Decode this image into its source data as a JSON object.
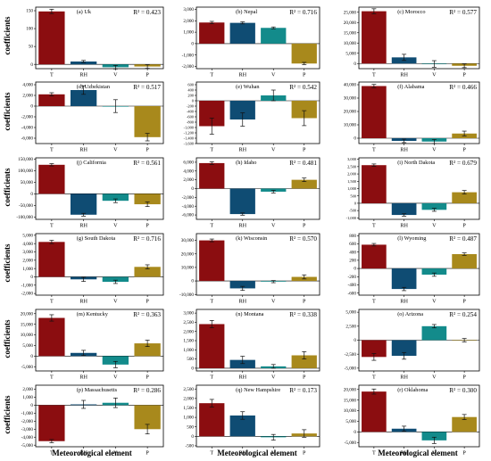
{
  "figure": {
    "y_axis_label": "coefficients",
    "x_axis_label": "Meteorological element"
  },
  "colors": {
    "T": "#8b0d10",
    "RH": "#0f4c73",
    "V": "#138b8b",
    "P": "#a8891c",
    "error_bar": "#111111"
  },
  "chart_data": [
    {
      "type": "bar",
      "title": "(a) Uk",
      "r2": "R² = 0.423",
      "categories": [
        "T",
        "RH",
        "V",
        "P"
      ],
      "values": [
        148,
        8,
        -8,
        -6
      ],
      "errors": [
        6,
        3,
        5,
        5
      ],
      "ylim": [
        -12,
        160
      ],
      "ticks": [
        0,
        50,
        100,
        150
      ],
      "tick_labels": [
        "0",
        "50",
        "100",
        "150"
      ]
    },
    {
      "type": "bar",
      "title": "(b) Nepal",
      "r2": "R² = 0.716",
      "categories": [
        "T",
        "RH",
        "V",
        "P"
      ],
      "values": [
        1850,
        1820,
        1380,
        -1750
      ],
      "errors": [
        100,
        90,
        80,
        100
      ],
      "ylim": [
        -2200,
        3200
      ],
      "ticks": [
        -2000,
        -1000,
        0,
        1000,
        2000,
        3000
      ],
      "tick_labels": [
        "-2,000",
        "-1,000",
        "0",
        "1,000",
        "2,000",
        "3,000"
      ]
    },
    {
      "type": "bar",
      "title": "(c) Morocco",
      "r2": "R² = 0.577",
      "categories": [
        "T",
        "RH",
        "V",
        "P"
      ],
      "values": [
        25500,
        3000,
        -200,
        -1100
      ],
      "errors": [
        1200,
        1500,
        1600,
        900
      ],
      "ylim": [
        -2500,
        27500
      ],
      "ticks": [
        0,
        5000,
        10000,
        15000,
        20000,
        25000
      ],
      "tick_labels": [
        "0",
        "5,000",
        "10,000",
        "15,000",
        "20,000",
        "25,000"
      ]
    },
    {
      "type": "bar",
      "title": "(d) Uzbekistan",
      "r2": "R² = 0.517",
      "categories": [
        "T",
        "RH",
        "V",
        "P"
      ],
      "values": [
        2200,
        3000,
        0,
        -5800
      ],
      "errors": [
        300,
        800,
        1200,
        700
      ],
      "ylim": [
        -7000,
        4500
      ],
      "ticks": [
        -6000,
        -4000,
        -2000,
        0,
        2000,
        4000
      ],
      "tick_labels": [
        "-6,000",
        "-4,000",
        "-2,000",
        "0",
        "2,000",
        "4,000"
      ]
    },
    {
      "type": "bar",
      "title": "(e) Wuhan",
      "r2": "R² = 0.542",
      "categories": [
        "T",
        "RH",
        "V",
        "P"
      ],
      "values": [
        -950,
        -700,
        200,
        -650
      ],
      "errors": [
        300,
        250,
        200,
        280
      ],
      "ylim": [
        -1600,
        700
      ],
      "ticks": [
        -1600,
        -1400,
        -1200,
        -1000,
        -800,
        -600,
        -400,
        -200,
        0,
        200,
        400,
        600
      ],
      "tick_labels": [
        "-1,600",
        "-1,400",
        "-1,200",
        "-1,000",
        "-800",
        "-600",
        "-400",
        "-200",
        "0",
        "200",
        "400",
        "600"
      ]
    },
    {
      "type": "bar",
      "title": "(f) Alabama",
      "r2": "R² = 0.466",
      "categories": [
        "T",
        "RH",
        "V",
        "P"
      ],
      "values": [
        39000,
        -2000,
        -2500,
        3500
      ],
      "errors": [
        1200,
        1300,
        1500,
        1800
      ],
      "ylim": [
        -4000,
        42000
      ],
      "ticks": [
        0,
        10000,
        20000,
        30000,
        40000
      ],
      "tick_labels": [
        "0",
        "10,000",
        "20,000",
        "30,000",
        "40,000"
      ]
    },
    {
      "type": "bar",
      "title": "(j) California",
      "r2": "R² = 0.561",
      "categories": [
        "T",
        "RH",
        "V",
        "P"
      ],
      "values": [
        125000,
        -90000,
        -30000,
        -45000
      ],
      "errors": [
        5000,
        6000,
        8000,
        10000
      ],
      "ylim": [
        -110000,
        155000
      ],
      "ticks": [
        -100000,
        -50000,
        0,
        50000,
        100000,
        150000
      ],
      "tick_labels": [
        "-100,000",
        "-50,000",
        "0",
        "50,000",
        "100,000",
        "150,000"
      ]
    },
    {
      "type": "bar",
      "title": "(h) Idaho",
      "r2": "R² = 0.481",
      "categories": [
        "T",
        "RH",
        "V",
        "P"
      ],
      "values": [
        5800,
        -5800,
        -700,
        2000
      ],
      "errors": [
        300,
        250,
        300,
        400
      ],
      "ylim": [
        -7000,
        7000
      ],
      "ticks": [
        -6000,
        -4000,
        -2000,
        0,
        2000,
        4000,
        6000
      ],
      "tick_labels": [
        "-6,000",
        "-4,000",
        "-2,000",
        "0",
        "2,000",
        "4,000",
        "6,000"
      ]
    },
    {
      "type": "bar",
      "title": "(i) North Dakota",
      "r2": "R² = 0.679",
      "categories": [
        "T",
        "RH",
        "V",
        "P"
      ],
      "values": [
        2600,
        -800,
        -450,
        750
      ],
      "errors": [
        80,
        80,
        100,
        120
      ],
      "ylim": [
        -1100,
        3100
      ],
      "ticks": [
        -1000,
        -500,
        0,
        500,
        1000,
        1500,
        2000,
        2500,
        3000
      ],
      "tick_labels": [
        "-1,000",
        "-500",
        "0",
        "500",
        "1,000",
        "1,500",
        "2,000",
        "2,500",
        "3,000"
      ]
    },
    {
      "type": "bar",
      "title": "(g) South Dakota",
      "r2": "R² = 0.716",
      "categories": [
        "T",
        "RH",
        "V",
        "P"
      ],
      "values": [
        4200,
        -300,
        -600,
        1200
      ],
      "errors": [
        200,
        250,
        200,
        250
      ],
      "ylim": [
        -2200,
        5200
      ],
      "ticks": [
        -2000,
        -1000,
        0,
        1000,
        2000,
        3000,
        4000,
        5000
      ],
      "tick_labels": [
        "-2,000",
        "-1,000",
        "0",
        "1,000",
        "2,000",
        "3,000",
        "4,000",
        "5,000"
      ]
    },
    {
      "type": "bar",
      "title": "(k) Wisconsin",
      "r2": "R² = 0.570",
      "categories": [
        "T",
        "RH",
        "V",
        "P"
      ],
      "values": [
        30000,
        -5500,
        -500,
        3000
      ],
      "errors": [
        1000,
        1500,
        800,
        1500
      ],
      "ylim": [
        -10500,
        35000
      ],
      "ticks": [
        -10000,
        0,
        10000,
        20000,
        30000
      ],
      "tick_labels": [
        "-10,000",
        "0",
        "10,000",
        "20,000",
        "30,000"
      ]
    },
    {
      "type": "bar",
      "title": "(l) Wyoming",
      "r2": "R² = 0.487",
      "categories": [
        "T",
        "RH",
        "V",
        "P"
      ],
      "values": [
        580,
        -500,
        -150,
        350
      ],
      "errors": [
        30,
        40,
        40,
        30
      ],
      "ylim": [
        -650,
        850
      ],
      "ticks": [
        -600,
        -400,
        -200,
        0,
        200,
        400,
        600,
        800
      ],
      "tick_labels": [
        "-600",
        "-400",
        "-200",
        "0",
        "200",
        "400",
        "600",
        "800"
      ]
    },
    {
      "type": "bar",
      "title": "(m) Kentucky",
      "r2": "R² = 0.363",
      "categories": [
        "T",
        "RH",
        "V",
        "P"
      ],
      "values": [
        18000,
        1500,
        -4000,
        6000
      ],
      "errors": [
        1500,
        1200,
        1500,
        1500
      ],
      "ylim": [
        -7000,
        22000
      ],
      "ticks": [
        -5000,
        0,
        5000,
        10000,
        15000,
        20000
      ],
      "tick_labels": [
        "-5,000",
        "0",
        "5,000",
        "10,000",
        "15,000",
        "20,000"
      ]
    },
    {
      "type": "bar",
      "title": "(n) Montana",
      "r2": "R² = 0.338",
      "categories": [
        "T",
        "RH",
        "V",
        "P"
      ],
      "values": [
        2400,
        450,
        100,
        700
      ],
      "errors": [
        200,
        200,
        100,
        200
      ],
      "ylim": [
        -150,
        3200
      ],
      "ticks": [
        0,
        500,
        1000,
        1500,
        2000,
        2500,
        3000
      ],
      "tick_labels": [
        "0",
        "500",
        "1,000",
        "1,500",
        "2,000",
        "2,500",
        "3,000"
      ]
    },
    {
      "type": "bar",
      "title": "(o) Arizona",
      "r2": "R² = 0.254",
      "categories": [
        "T",
        "RH",
        "V",
        "P"
      ],
      "values": [
        -3000,
        -2800,
        2500,
        0
      ],
      "errors": [
        600,
        600,
        300,
        300
      ],
      "ylim": [
        -5500,
        5500
      ],
      "ticks": [
        -5000,
        -2500,
        0,
        2500,
        5000
      ],
      "tick_labels": [
        "-5,000",
        "-2,500",
        "0",
        "2,500",
        "5,000"
      ]
    },
    {
      "type": "bar",
      "title": "(p) Massachusetts",
      "r2": "R² = 0.286",
      "categories": [
        "T",
        "RH",
        "V",
        "P"
      ],
      "values": [
        -4500,
        100,
        300,
        -3000
      ],
      "errors": [
        200,
        500,
        600,
        600
      ],
      "ylim": [
        -5200,
        2500
      ],
      "ticks": [
        -5000,
        -4000,
        -3000,
        -2000,
        -1000,
        0,
        1000,
        2000
      ],
      "tick_labels": [
        "-5,000",
        "-4,000",
        "-3,000",
        "-2,000",
        "-1,000",
        "0",
        "1,000",
        "2,000"
      ]
    },
    {
      "type": "bar",
      "title": "(q) New Hampshire",
      "r2": "R² = 0.173",
      "categories": [
        "T",
        "RH",
        "V",
        "P"
      ],
      "values": [
        1750,
        1100,
        -50,
        150
      ],
      "errors": [
        200,
        200,
        150,
        200
      ],
      "ylim": [
        -550,
        2700
      ],
      "ticks": [
        -500,
        0,
        500,
        1000,
        1500,
        2000,
        2500
      ],
      "tick_labels": [
        "-500",
        "0",
        "500",
        "1,000",
        "1,500",
        "2,000",
        "2,500"
      ]
    },
    {
      "type": "bar",
      "title": "(r) Oklahoma",
      "r2": "R² = 0.300",
      "categories": [
        "T",
        "RH",
        "V",
        "P"
      ],
      "values": [
        19000,
        1500,
        -4000,
        7000
      ],
      "errors": [
        1200,
        1200,
        1500,
        1200
      ],
      "ylim": [
        -7000,
        22000
      ],
      "ticks": [
        -5000,
        0,
        5000,
        10000,
        15000,
        20000
      ],
      "tick_labels": [
        "-5,000",
        "0",
        "5,000",
        "10,000",
        "15,000",
        "20,000"
      ]
    }
  ]
}
